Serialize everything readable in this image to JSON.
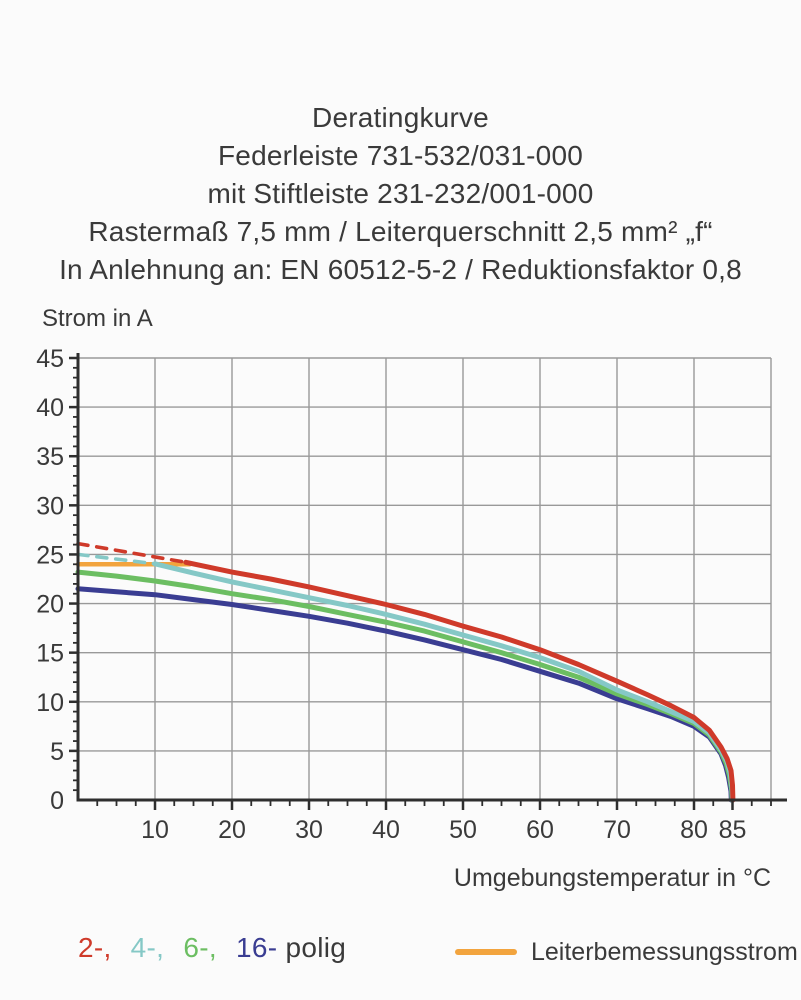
{
  "title_lines": [
    "Deratingkurve",
    "Federleiste 731-532/031-000",
    "mit Stiftleiste 231-232/001-000",
    "Rastermaß 7,5 mm / Leiterquerschnitt 2,5 mm² „f“",
    "In Anlehnung an: EN 60512-5-2 / Reduktionsfaktor 0,8"
  ],
  "colors": {
    "text": "#3a3a3a",
    "axis": "#2e2e2e",
    "grid": "#999999",
    "pole2_red": "#cf3a2a",
    "pole4_cyan": "#85c8c6",
    "pole6_green": "#6cbe62",
    "pole16_navy": "#3a3d92",
    "rated_orange": "#f2a43e"
  },
  "chart_data": {
    "type": "line",
    "title": "Deratingkurve",
    "xlabel": "Umgebungstemperatur in °C",
    "ylabel": "Strom in A",
    "xlim": [
      0,
      90
    ],
    "ylim": [
      0,
      45
    ],
    "grid": "on",
    "x_major_ticks": [
      10,
      20,
      30,
      40,
      50,
      60,
      70,
      80,
      85
    ],
    "x_minor_step": 2.5,
    "y_major_ticks": [
      0,
      5,
      10,
      15,
      20,
      25,
      30,
      35,
      40,
      45
    ],
    "y_minor_step": 1,
    "legend_position": "bottom",
    "series": [
      {
        "name": "Leiterbemessungsstrom",
        "color": "#f2a43e",
        "width": 4.5,
        "dash": null,
        "points": [
          [
            0,
            24
          ],
          [
            14.5,
            24
          ]
        ]
      },
      {
        "name": "2-polig-dashed",
        "color": "#cf3a2a",
        "width": 3.6,
        "dash": "10 9",
        "points": [
          [
            0,
            26.1
          ],
          [
            14,
            24.2
          ]
        ]
      },
      {
        "name": "4-polig-dashed",
        "color": "#85c8c6",
        "width": 3.6,
        "dash": "10 9",
        "points": [
          [
            0,
            25.0
          ],
          [
            10,
            24.05
          ]
        ]
      },
      {
        "name": "16-polig",
        "color": "#3a3d92",
        "width": 5,
        "dash": null,
        "points": [
          [
            0,
            21.5
          ],
          [
            5,
            21.2
          ],
          [
            10,
            20.9
          ],
          [
            15,
            20.4
          ],
          [
            20,
            19.9
          ],
          [
            25,
            19.3
          ],
          [
            30,
            18.7
          ],
          [
            35,
            18.0
          ],
          [
            40,
            17.2
          ],
          [
            45,
            16.3
          ],
          [
            50,
            15.3
          ],
          [
            55,
            14.3
          ],
          [
            60,
            13.1
          ],
          [
            65,
            11.9
          ],
          [
            70,
            10.3
          ],
          [
            74,
            9.3
          ],
          [
            77,
            8.5
          ],
          [
            80,
            7.5
          ],
          [
            82,
            6.4
          ],
          [
            83.5,
            4.7
          ],
          [
            84.1,
            3.5
          ],
          [
            84.5,
            2.3
          ],
          [
            84.8,
            0.9
          ],
          [
            84.85,
            0
          ]
        ]
      },
      {
        "name": "6-polig",
        "color": "#6cbe62",
        "width": 5,
        "dash": null,
        "points": [
          [
            0,
            23.2
          ],
          [
            5,
            22.8
          ],
          [
            10,
            22.3
          ],
          [
            15,
            21.7
          ],
          [
            20,
            21.0
          ],
          [
            25,
            20.4
          ],
          [
            30,
            19.7
          ],
          [
            35,
            18.9
          ],
          [
            40,
            18.1
          ],
          [
            45,
            17.2
          ],
          [
            50,
            16.1
          ],
          [
            55,
            15.0
          ],
          [
            60,
            13.8
          ],
          [
            65,
            12.5
          ],
          [
            70,
            10.8
          ],
          [
            74,
            9.7
          ],
          [
            77,
            8.8
          ],
          [
            80,
            7.8
          ],
          [
            82,
            6.6
          ],
          [
            83.5,
            4.9
          ],
          [
            84.2,
            3.7
          ],
          [
            84.6,
            2.5
          ],
          [
            84.9,
            1.0
          ],
          [
            84.95,
            0
          ]
        ]
      },
      {
        "name": "4-polig",
        "color": "#85c8c6",
        "width": 5,
        "dash": null,
        "points": [
          [
            10,
            24.05
          ],
          [
            15,
            23.1
          ],
          [
            20,
            22.2
          ],
          [
            25,
            21.4
          ],
          [
            30,
            20.6
          ],
          [
            35,
            19.8
          ],
          [
            40,
            18.9
          ],
          [
            45,
            17.9
          ],
          [
            50,
            16.8
          ],
          [
            55,
            15.7
          ],
          [
            60,
            14.5
          ],
          [
            65,
            13.1
          ],
          [
            70,
            11.2
          ],
          [
            74,
            10.0
          ],
          [
            77,
            9.0
          ],
          [
            80,
            8.0
          ],
          [
            82,
            6.8
          ],
          [
            83.5,
            5.1
          ],
          [
            84.3,
            3.9
          ],
          [
            84.7,
            2.7
          ],
          [
            84.95,
            1.2
          ],
          [
            85,
            0
          ]
        ]
      },
      {
        "name": "2-polig",
        "color": "#cf3a2a",
        "width": 5,
        "dash": null,
        "points": [
          [
            14,
            24.2
          ],
          [
            20,
            23.2
          ],
          [
            25,
            22.5
          ],
          [
            30,
            21.7
          ],
          [
            35,
            20.8
          ],
          [
            40,
            19.9
          ],
          [
            45,
            18.9
          ],
          [
            50,
            17.7
          ],
          [
            55,
            16.6
          ],
          [
            60,
            15.3
          ],
          [
            65,
            13.8
          ],
          [
            70,
            12.1
          ],
          [
            74,
            10.7
          ],
          [
            77,
            9.6
          ],
          [
            80,
            8.4
          ],
          [
            82,
            7.1
          ],
          [
            83.5,
            5.4
          ],
          [
            84.3,
            4.2
          ],
          [
            84.8,
            3.0
          ],
          [
            85.0,
            1.5
          ],
          [
            85.05,
            0
          ]
        ]
      }
    ]
  },
  "legend_left": {
    "items": [
      {
        "text": "2-,",
        "color": "#cf3a2a"
      },
      {
        "text": "4-,",
        "color": "#85c8c6"
      },
      {
        "text": "6-,",
        "color": "#6cbe62"
      },
      {
        "text": "16-",
        "color": "#3a3d92"
      },
      {
        "text": "polig",
        "color": "#3a3a3a"
      }
    ]
  },
  "legend_right": {
    "label": "Leiterbemessungsstrom",
    "swatch_color": "#f2a43e"
  }
}
